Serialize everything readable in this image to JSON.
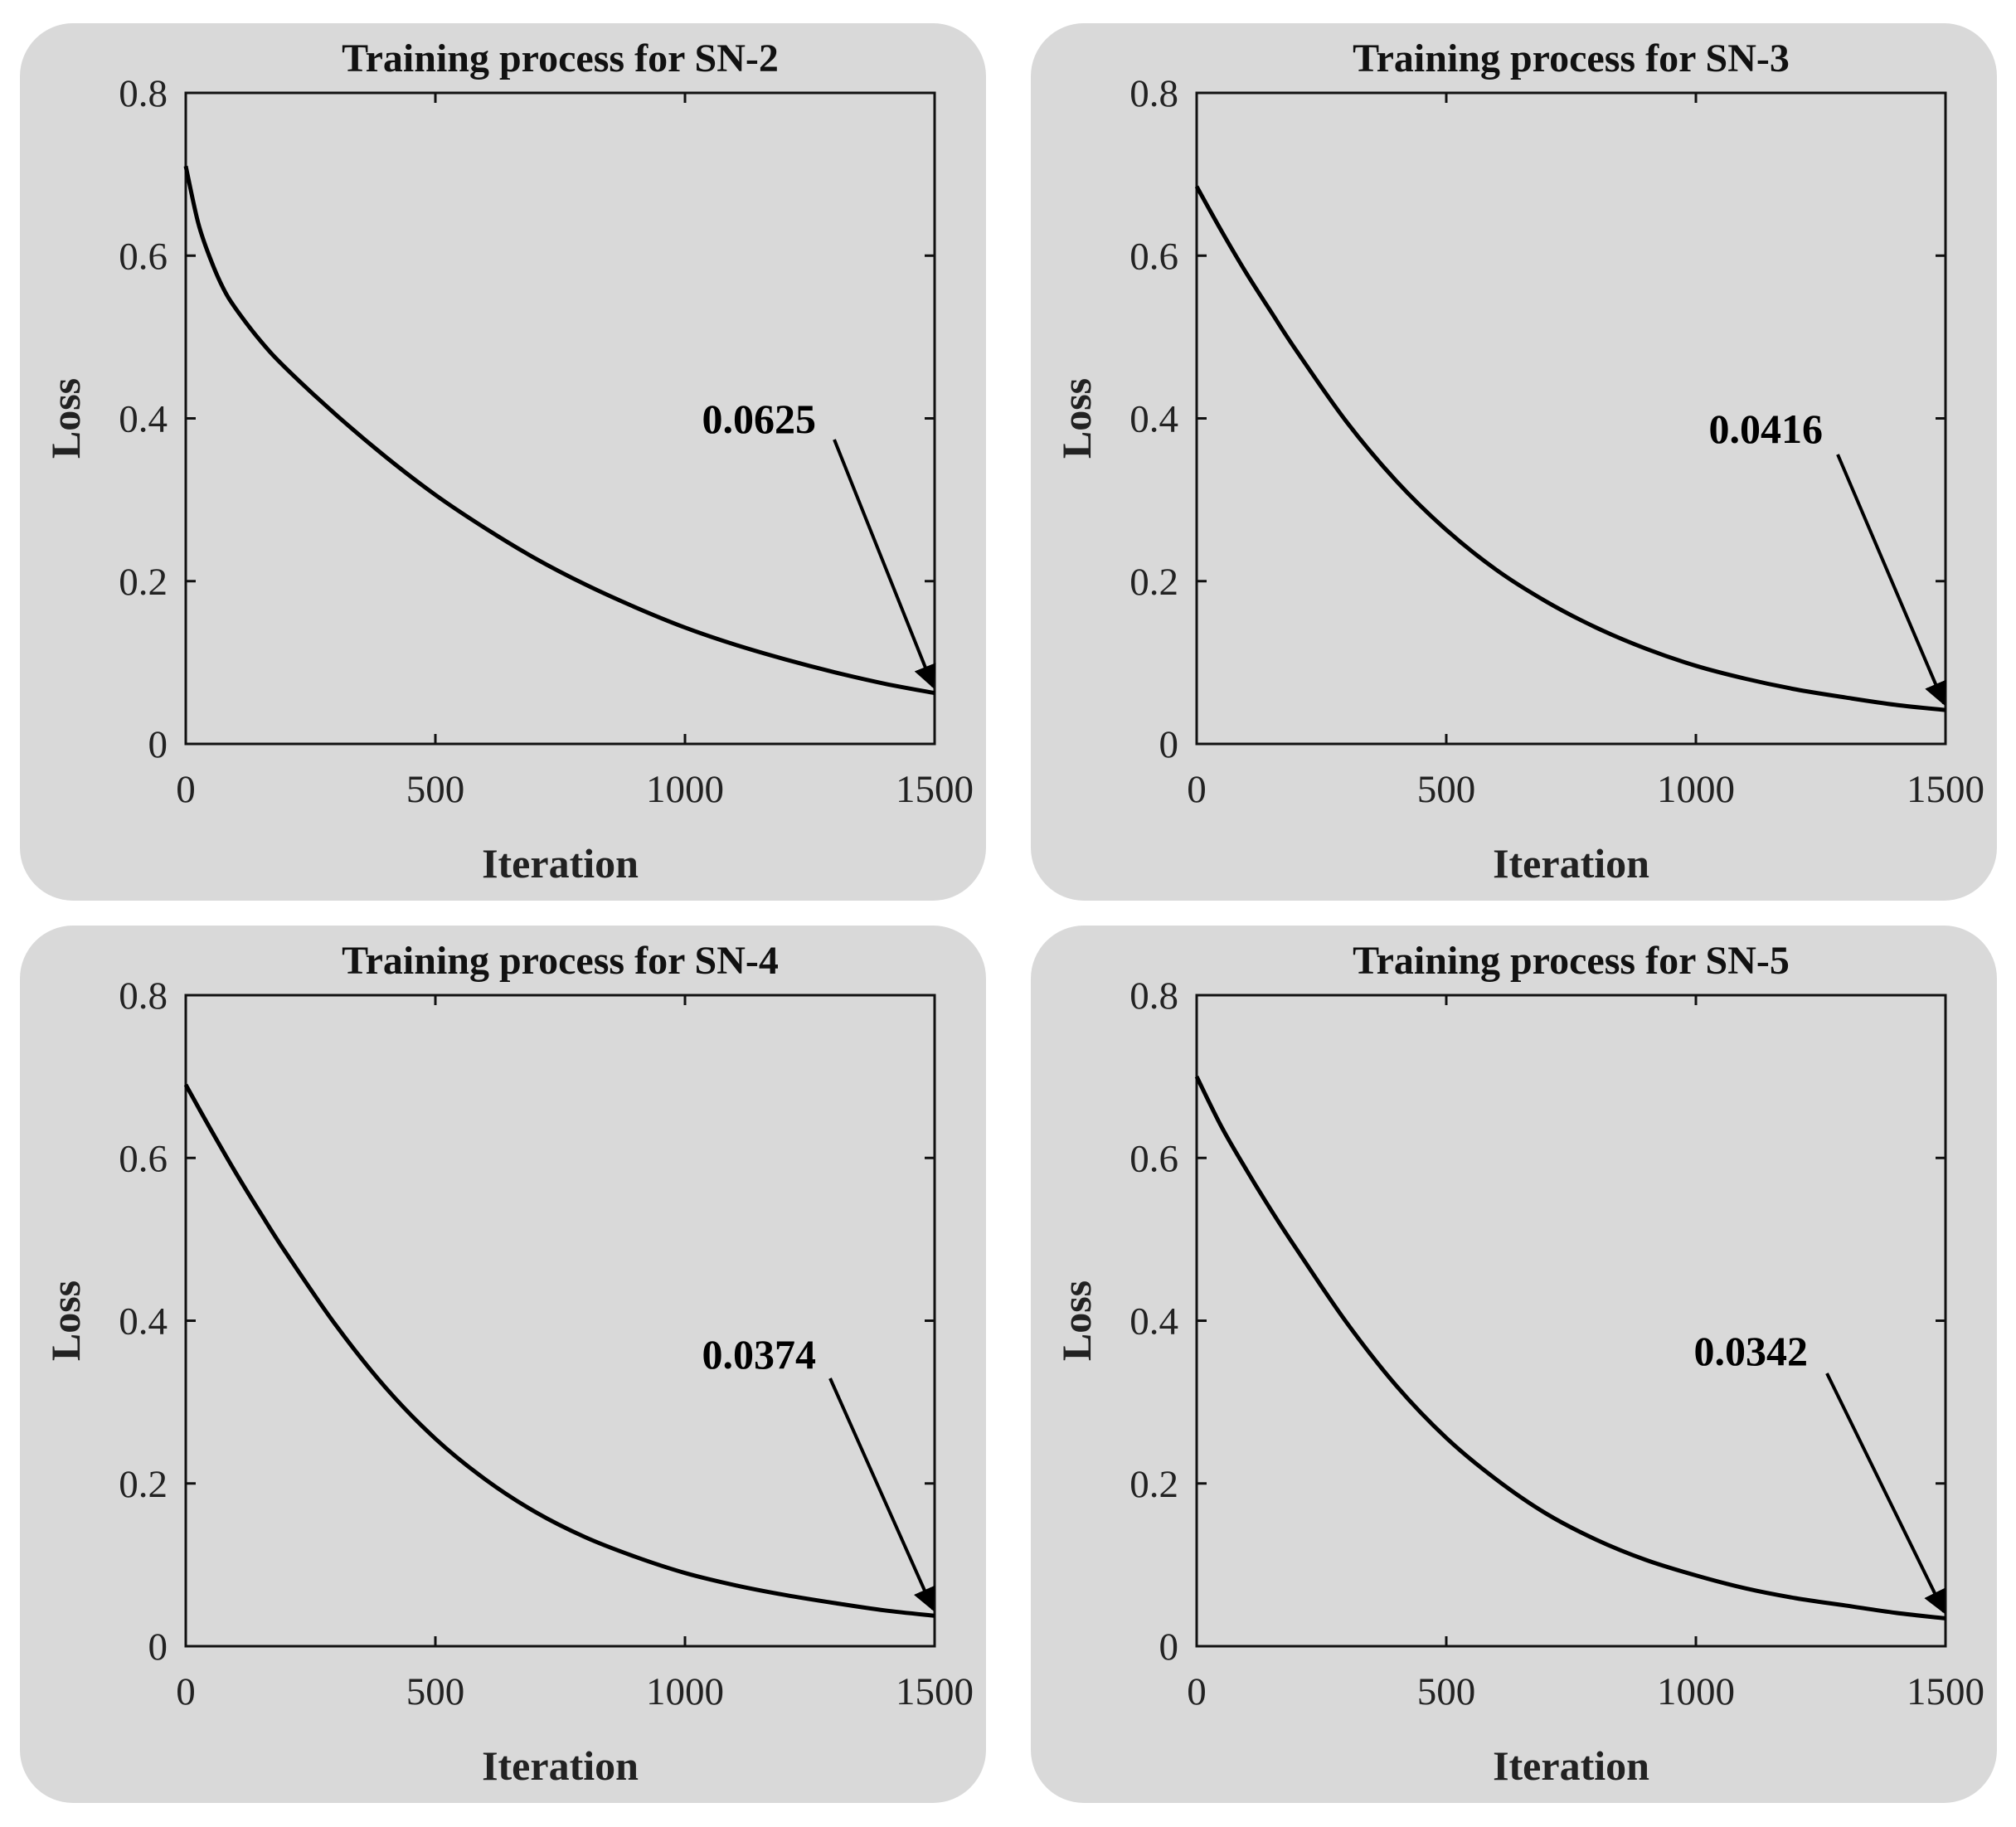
{
  "chart_data": [
    {
      "type": "line",
      "title": "Training process for SN-2",
      "xlabel": "Iteration",
      "ylabel": "Loss",
      "xlim": [
        0,
        1500
      ],
      "ylim": [
        0,
        0.8
      ],
      "xticks": [
        "0",
        "500",
        "1000",
        "1500"
      ],
      "yticks": [
        "0",
        "0.2",
        "0.4",
        "0.6",
        "0.8"
      ],
      "grid": false,
      "x": [
        0,
        25,
        50,
        75,
        100,
        150,
        200,
        300,
        400,
        500,
        600,
        700,
        800,
        900,
        1000,
        1100,
        1200,
        1300,
        1400,
        1500
      ],
      "y": [
        0.71,
        0.64,
        0.595,
        0.56,
        0.535,
        0.495,
        0.462,
        0.405,
        0.353,
        0.306,
        0.265,
        0.228,
        0.196,
        0.168,
        0.143,
        0.122,
        0.104,
        0.088,
        0.074,
        0.0625
      ],
      "annotation": {
        "text": "0.0625",
        "x": 1500,
        "y": 0.0625
      }
    },
    {
      "type": "line",
      "title": "Training process for SN-3",
      "xlabel": "Iteration",
      "ylabel": "Loss",
      "xlim": [
        0,
        1500
      ],
      "ylim": [
        0,
        0.8
      ],
      "xticks": [
        "0",
        "500",
        "1000",
        "1500"
      ],
      "yticks": [
        "0",
        "0.2",
        "0.4",
        "0.6",
        "0.8"
      ],
      "grid": false,
      "x": [
        0,
        50,
        100,
        150,
        200,
        300,
        400,
        500,
        600,
        700,
        800,
        900,
        1000,
        1100,
        1200,
        1300,
        1400,
        1500
      ],
      "y": [
        0.685,
        0.63,
        0.578,
        0.53,
        0.483,
        0.396,
        0.323,
        0.263,
        0.214,
        0.175,
        0.143,
        0.117,
        0.096,
        0.08,
        0.067,
        0.057,
        0.048,
        0.0416
      ],
      "annotation": {
        "text": "0.0416",
        "x": 1500,
        "y": 0.0416
      }
    },
    {
      "type": "line",
      "title": "Training process for SN-4",
      "xlabel": "Iteration",
      "ylabel": "Loss",
      "xlim": [
        0,
        1500
      ],
      "ylim": [
        0,
        0.8
      ],
      "xticks": [
        "0",
        "500",
        "1000",
        "1500"
      ],
      "yticks": [
        "0",
        "0.2",
        "0.4",
        "0.6",
        "0.8"
      ],
      "grid": false,
      "x": [
        0,
        50,
        100,
        150,
        200,
        300,
        400,
        500,
        600,
        700,
        800,
        900,
        1000,
        1100,
        1200,
        1300,
        1400,
        1500
      ],
      "y": [
        0.69,
        0.635,
        0.582,
        0.532,
        0.484,
        0.395,
        0.318,
        0.255,
        0.205,
        0.165,
        0.134,
        0.11,
        0.09,
        0.075,
        0.063,
        0.053,
        0.044,
        0.0374
      ],
      "annotation": {
        "text": "0.0374",
        "x": 1500,
        "y": 0.0374
      }
    },
    {
      "type": "line",
      "title": "Training process for SN-5",
      "xlabel": "Iteration",
      "ylabel": "Loss",
      "xlim": [
        0,
        1500
      ],
      "ylim": [
        0,
        0.8
      ],
      "xticks": [
        "0",
        "500",
        "1000",
        "1500"
      ],
      "yticks": [
        "0",
        "0.2",
        "0.4",
        "0.6",
        "0.8"
      ],
      "grid": false,
      "x": [
        0,
        50,
        100,
        150,
        200,
        300,
        400,
        500,
        600,
        700,
        800,
        900,
        1000,
        1100,
        1200,
        1300,
        1400,
        1500
      ],
      "y": [
        0.7,
        0.638,
        0.585,
        0.535,
        0.488,
        0.398,
        0.32,
        0.256,
        0.205,
        0.163,
        0.131,
        0.106,
        0.087,
        0.071,
        0.059,
        0.05,
        0.041,
        0.0342
      ],
      "annotation": {
        "text": "0.0342",
        "x": 1500,
        "y": 0.0342
      }
    }
  ]
}
